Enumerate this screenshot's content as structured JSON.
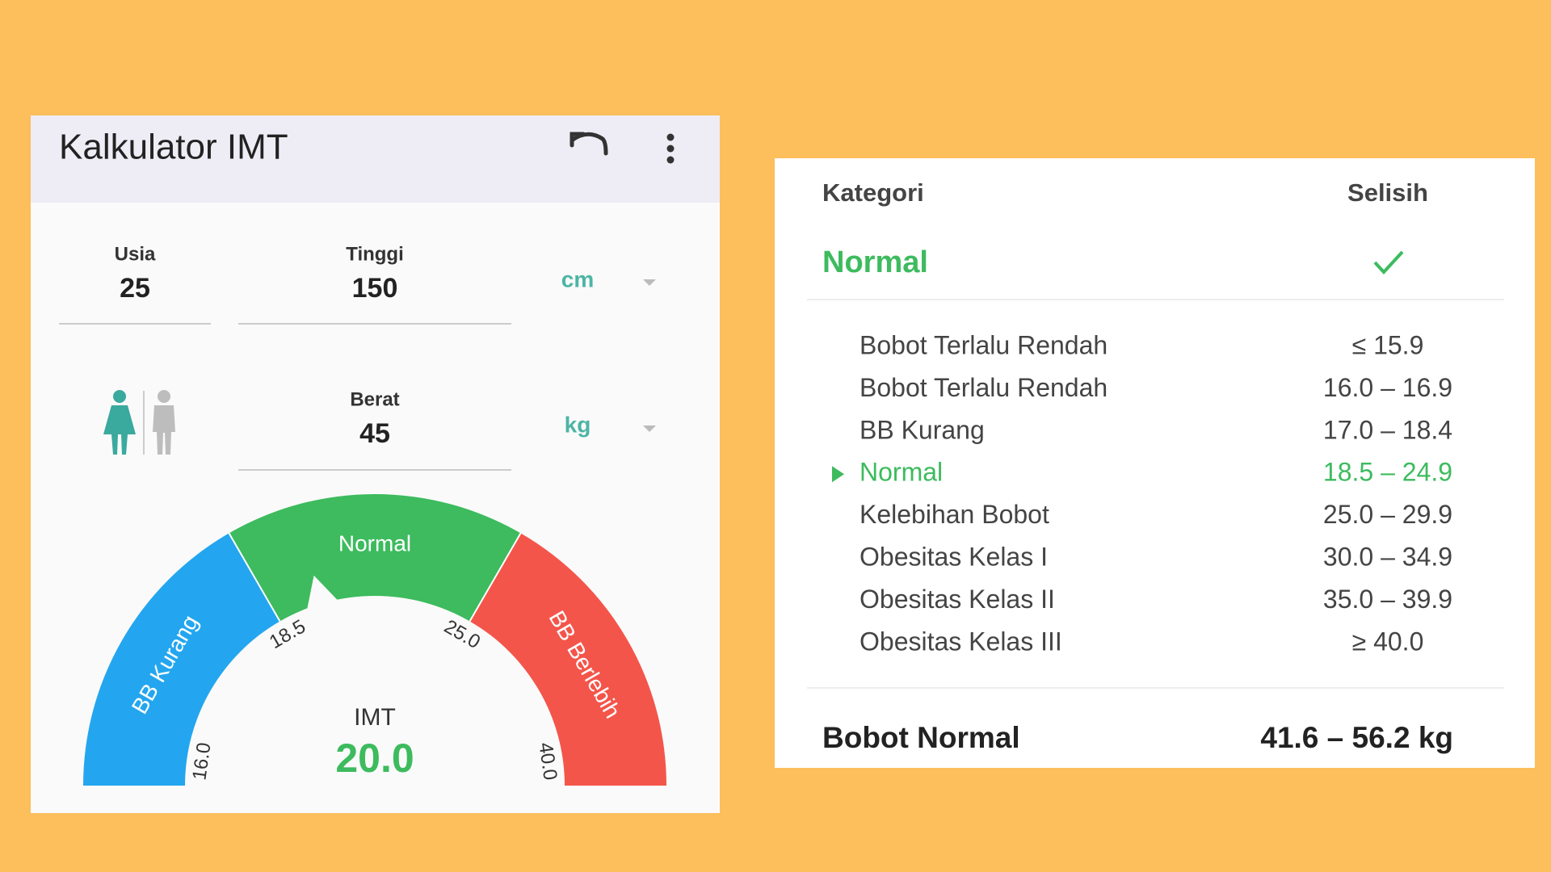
{
  "header": {
    "title": "Kalkulator IMT"
  },
  "inputs": [
    {
      "label": "Usia",
      "value": 25
    },
    {
      "label": "Tinggi",
      "value": 150,
      "unit": "cm"
    },
    {
      "label": "Berat",
      "value": 45,
      "unit": "kg"
    }
  ],
  "gauge": {
    "segments": [
      {
        "label": "BB Kurang",
        "color": "#23a6ef"
      },
      {
        "label": "Normal",
        "color": "#3dbb5e"
      },
      {
        "label": "BB Berlebih",
        "color": "#f4554a"
      }
    ],
    "ticks": [
      {
        "value": 16,
        "label": "16.0"
      },
      {
        "value": 18.5,
        "label": "18.5"
      },
      {
        "value": 25,
        "label": "25.0"
      },
      {
        "value": 40,
        "label": "40.0"
      }
    ],
    "value_label": "IMT",
    "value": {
      "value": 20,
      "label": "20.0"
    }
  },
  "table": {
    "headers": [
      "Kategori",
      "Selisih"
    ],
    "status": "Normal",
    "rows": [
      [
        "Bobot Terlalu Rendah",
        "≤ 15.9"
      ],
      [
        "Bobot Terlalu Rendah",
        "16.0 – 16.9"
      ],
      [
        "BB Kurang",
        "17.0 – 18.4"
      ],
      [
        "Normal",
        "18.5 – 24.9"
      ],
      [
        "Kelebihan Bobot",
        "25.0 – 29.9"
      ],
      [
        "Obesitas Kelas I",
        "30.0 – 34.9"
      ],
      [
        "Obesitas Kelas II",
        "35.0 – 39.9"
      ],
      [
        "Obesitas Kelas III",
        "≥ 40.0"
      ]
    ]
  },
  "footer": {
    "label": "Bobot Normal",
    "value": "41.6 – 56.2 kg"
  }
}
